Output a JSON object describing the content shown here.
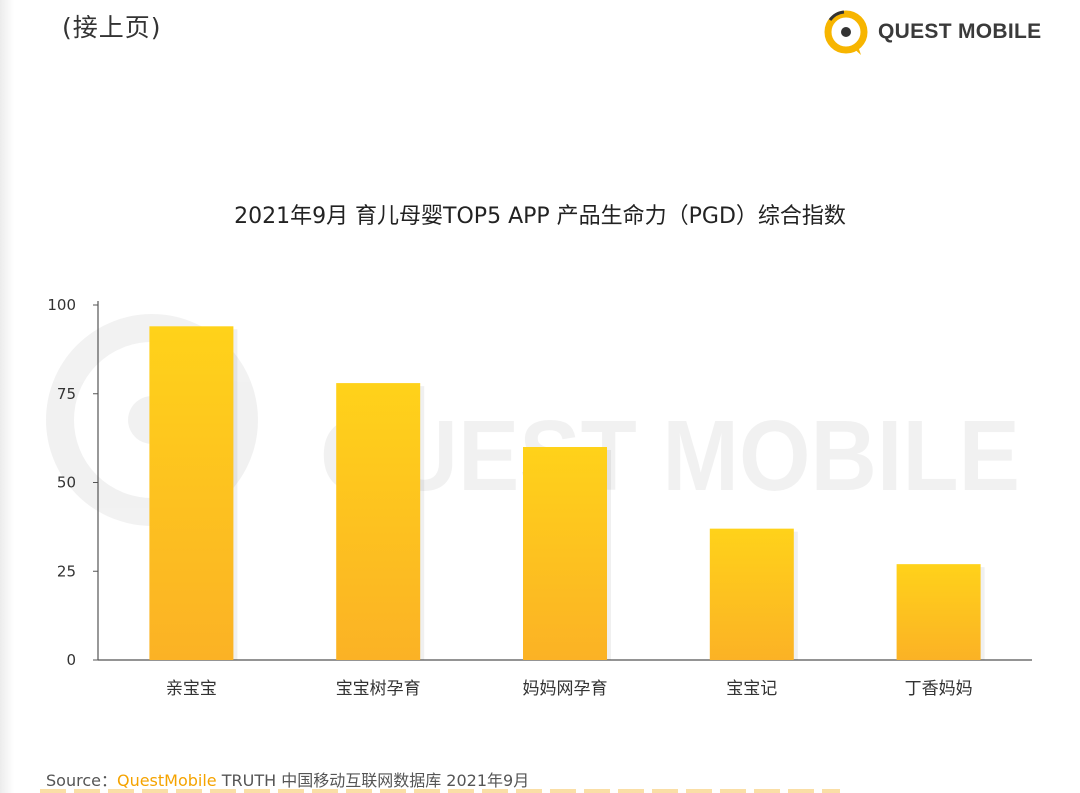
{
  "header": {
    "continued": "(接上页)",
    "brand": "QUEST MOBILE",
    "watermark": "QUEST MOBILE"
  },
  "colors": {
    "bar_top": "#ffd21a",
    "bar_bottom": "#fbb225",
    "axis": "#555555",
    "accent": "#f5a300"
  },
  "icons": {
    "brand_logo": "questmobile-logo-icon"
  },
  "chart_data": {
    "type": "bar",
    "title": "2021年9月 育儿母婴TOP5 APP 产品生命力（PGD）综合指数",
    "categories": [
      "亲宝宝",
      "宝宝树孕育",
      "妈妈网孕育",
      "宝宝记",
      "丁香妈妈"
    ],
    "values": [
      94,
      78,
      60,
      37,
      27
    ],
    "yticks": [
      0,
      25,
      50,
      75,
      100
    ],
    "ylim": [
      0,
      100
    ],
    "grid": false,
    "legend": "none"
  },
  "source": {
    "prefix": "Source：",
    "brand": "QuestMobile",
    "rest": " TRUTH 中国移动互联网数据库 2021年9月"
  }
}
